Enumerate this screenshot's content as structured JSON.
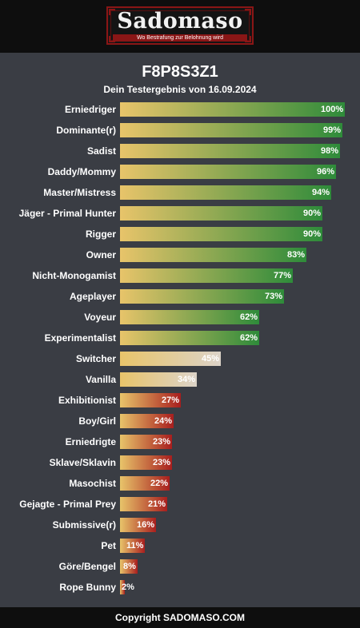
{
  "logo": {
    "name": "Sadomaso",
    "tagline": "Wo Bestrafung zur Belohnung wird"
  },
  "header": {
    "title": "F8P8S3Z1",
    "subtitle": "Dein Testergebnis von 16.09.2024"
  },
  "footer": {
    "text": "Copyright SADOMASO.COM"
  },
  "colors": {
    "background": "#3a3d44",
    "bar_start": "#e8c46a",
    "high_end": "#2e8b3a",
    "mid_end": "#dcd3c8",
    "low_end": "#a81e1e"
  },
  "chart_data": {
    "type": "bar",
    "orientation": "horizontal",
    "title": "F8P8S3Z1",
    "subtitle": "Dein Testergebnis von 16.09.2024",
    "xlim": [
      0,
      100
    ],
    "unit": "%",
    "categories": [
      "Erniedriger",
      "Dominante(r)",
      "Sadist",
      "Daddy/Mommy",
      "Master/Mistress",
      "Jäger - Primal Hunter",
      "Rigger",
      "Owner",
      "Nicht-Monogamist",
      "Ageplayer",
      "Voyeur",
      "Experimentalist",
      "Switcher",
      "Vanilla",
      "Exhibitionist",
      "Boy/Girl",
      "Erniedrigte",
      "Sklave/Sklavin",
      "Masochist",
      "Gejagte - Primal Prey",
      "Submissive(r)",
      "Pet",
      "Göre/Bengel",
      "Rope Bunny"
    ],
    "values": [
      100,
      99,
      98,
      96,
      94,
      90,
      90,
      83,
      77,
      73,
      62,
      62,
      45,
      34,
      27,
      24,
      23,
      23,
      22,
      21,
      16,
      11,
      8,
      2
    ],
    "labels": [
      "100%",
      "99%",
      "98%",
      "96%",
      "94%",
      "90%",
      "90%",
      "83%",
      "77%",
      "73%",
      "62%",
      "62%",
      "45%",
      "34%",
      "27%",
      "24%",
      "23%",
      "23%",
      "22%",
      "21%",
      "16%",
      "11%",
      "8%",
      "2%"
    ]
  }
}
